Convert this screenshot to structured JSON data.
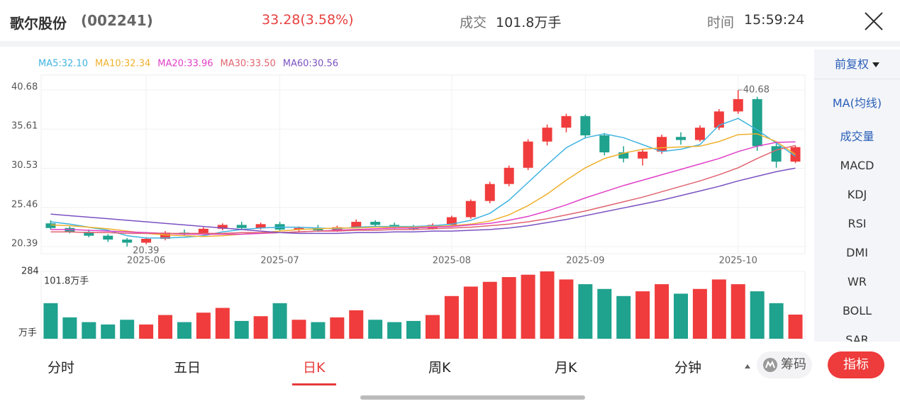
{
  "header": {
    "name": "歌尔股份",
    "code": "(002241)",
    "price": "33.28(3.58%)",
    "volume_label": "成交",
    "volume": "101.8万手",
    "time_label": "时间",
    "time": "15:59:24"
  },
  "chart_data": {
    "type": "candlestick",
    "categories": [
      null,
      null,
      null,
      null,
      null,
      "2025-06",
      null,
      null,
      null,
      null,
      null,
      null,
      "2025-07",
      null,
      null,
      null,
      null,
      null,
      null,
      null,
      null,
      "2025-08",
      null,
      null,
      null,
      null,
      null,
      null,
      "2025-09",
      null,
      null,
      null,
      null,
      null,
      null,
      null,
      "2025-10",
      null,
      null,
      null
    ],
    "open": [
      23.4,
      22.8,
      22.3,
      21.8,
      21.3,
      20.9,
      21.4,
      22.2,
      22.0,
      22.7,
      23.2,
      22.8,
      23.3,
      22.6,
      22.8,
      22.5,
      22.9,
      23.6,
      23.2,
      22.9,
      22.7,
      23.2,
      24.2,
      26.3,
      28.5,
      30.6,
      34.0,
      35.8,
      37.3,
      34.8,
      32.6,
      31.8,
      32.7,
      34.6,
      34.2,
      35.8,
      37.9,
      39.5,
      33.4,
      31.4
    ],
    "high": [
      23.8,
      23.0,
      22.6,
      22.0,
      21.5,
      21.6,
      22.4,
      22.6,
      22.9,
      23.4,
      23.6,
      23.5,
      23.6,
      23.0,
      23.2,
      23.1,
      23.9,
      23.8,
      23.5,
      23.2,
      23.4,
      24.4,
      26.5,
      28.8,
      30.9,
      34.3,
      36.2,
      37.6,
      37.5,
      35.1,
      33.4,
      33.0,
      34.9,
      35.2,
      36.1,
      38.2,
      40.68,
      39.8,
      33.9,
      33.5
    ],
    "low": [
      22.6,
      22.1,
      21.6,
      21.0,
      20.39,
      20.7,
      21.2,
      21.8,
      21.9,
      22.5,
      22.6,
      22.6,
      22.4,
      22.2,
      22.3,
      22.3,
      22.8,
      23.0,
      22.7,
      22.5,
      22.6,
      23.0,
      24.0,
      26.0,
      28.2,
      30.3,
      33.5,
      35.2,
      34.4,
      32.2,
      31.3,
      30.9,
      32.4,
      33.6,
      34.0,
      35.5,
      37.6,
      32.8,
      30.6,
      31.2
    ],
    "close": [
      22.8,
      22.3,
      21.8,
      21.3,
      20.9,
      21.4,
      22.2,
      22.0,
      22.7,
      23.2,
      22.8,
      23.3,
      22.6,
      22.8,
      22.5,
      22.9,
      23.6,
      23.2,
      22.9,
      22.7,
      23.2,
      24.2,
      26.3,
      28.5,
      30.6,
      34.0,
      35.8,
      37.3,
      34.8,
      32.6,
      31.8,
      32.7,
      34.6,
      34.2,
      35.8,
      37.9,
      39.5,
      33.4,
      31.4,
      33.28
    ],
    "up_color": "#f03c3c",
    "down_color": "#1fa28e",
    "ylim": [
      20.39,
      40.68
    ],
    "yticks": [
      20.39,
      25.46,
      30.53,
      35.61,
      40.68
    ],
    "grid": true,
    "series": [
      {
        "name": "MA5:32.10",
        "color": "#3fb3e0",
        "values": [
          23.6,
          23.3,
          22.9,
          22.5,
          21.8,
          21.5,
          21.5,
          21.6,
          21.8,
          22.3,
          22.6,
          22.8,
          22.9,
          22.9,
          22.8,
          22.7,
          22.9,
          23.0,
          23.0,
          23.0,
          23.1,
          23.3,
          23.8,
          24.7,
          26.4,
          28.7,
          31.0,
          33.2,
          34.5,
          35.0,
          34.5,
          33.6,
          32.7,
          33.0,
          33.6,
          36.1,
          37.0,
          35.5,
          33.8,
          32.1
        ]
      },
      {
        "name": "MA10:32.34",
        "color": "#efb02c",
        "values": [
          23.2,
          23.1,
          22.9,
          22.7,
          22.4,
          22.1,
          21.9,
          21.8,
          21.7,
          21.8,
          22.0,
          22.2,
          22.4,
          22.6,
          22.7,
          22.8,
          22.8,
          22.9,
          22.9,
          22.9,
          23.0,
          23.1,
          23.3,
          23.7,
          24.5,
          25.7,
          27.2,
          29.0,
          30.6,
          31.8,
          32.5,
          33.0,
          33.2,
          33.3,
          33.4,
          34.0,
          34.9,
          35.0,
          34.0,
          32.34
        ]
      },
      {
        "name": "MA20:33.96",
        "color": "#e040c8",
        "values": [
          22.6,
          22.6,
          22.5,
          22.4,
          22.3,
          22.2,
          22.1,
          22.0,
          22.0,
          22.0,
          22.0,
          22.1,
          22.2,
          22.3,
          22.4,
          22.5,
          22.6,
          22.7,
          22.8,
          22.8,
          22.9,
          23.0,
          23.2,
          23.4,
          23.8,
          24.3,
          25.0,
          25.8,
          26.7,
          27.5,
          28.3,
          29.0,
          29.7,
          30.4,
          31.1,
          31.8,
          32.7,
          33.4,
          33.9,
          33.96
        ]
      },
      {
        "name": "MA30:33.50",
        "color": "#e06470",
        "values": [
          22.3,
          22.3,
          22.2,
          22.2,
          22.1,
          22.1,
          22.1,
          22.1,
          22.1,
          22.1,
          22.2,
          22.2,
          22.2,
          22.3,
          22.4,
          22.4,
          22.5,
          22.5,
          22.6,
          22.6,
          22.7,
          22.8,
          22.9,
          23.1,
          23.3,
          23.6,
          24.0,
          24.5,
          25.0,
          25.6,
          26.2,
          26.8,
          27.5,
          28.2,
          28.9,
          29.7,
          30.6,
          31.8,
          32.9,
          33.5
        ]
      },
      {
        "name": "MA60:30.56",
        "color": "#7a52c2",
        "values": [
          24.6,
          24.4,
          24.2,
          24.0,
          23.8,
          23.6,
          23.4,
          23.2,
          23.0,
          22.8,
          22.6,
          22.4,
          22.2,
          22.1,
          22.1,
          22.1,
          22.2,
          22.2,
          22.3,
          22.3,
          22.4,
          22.4,
          22.5,
          22.6,
          22.8,
          23.1,
          23.5,
          23.9,
          24.4,
          24.9,
          25.4,
          25.9,
          26.4,
          27.0,
          27.6,
          28.2,
          28.9,
          29.5,
          30.1,
          30.56
        ]
      }
    ],
    "volume": {
      "values": [
        150,
        90,
        70,
        60,
        80,
        60,
        100,
        70,
        110,
        130,
        75,
        95,
        150,
        80,
        70,
        90,
        120,
        80,
        70,
        75,
        100,
        180,
        220,
        240,
        260,
        270,
        284,
        250,
        230,
        210,
        180,
        200,
        230,
        190,
        210,
        250,
        230,
        200,
        150,
        101.8
      ],
      "value_labels": [
        null,
        null,
        null,
        null,
        null,
        null,
        null,
        null,
        null,
        null,
        null,
        null,
        null,
        null,
        null,
        null,
        null,
        null,
        null,
        null,
        null,
        null,
        null,
        null,
        null,
        null,
        null,
        null,
        null,
        null,
        null,
        null,
        null,
        null,
        null,
        null,
        null,
        null,
        null,
        "101.8万手"
      ],
      "ylim": [
        0,
        284
      ],
      "yticks": [
        284
      ],
      "unit": "万手"
    }
  },
  "side_menu": {
    "adjust": "前复权",
    "items": [
      "MA(均线)",
      "成交量",
      "MACD",
      "KDJ",
      "RSI",
      "DMI",
      "WR",
      "BOLL",
      "SAR"
    ]
  },
  "tabs": [
    "分时",
    "五日",
    "日K",
    "周K",
    "月K",
    "分钟"
  ],
  "chip_button": "筹码",
  "indicator_button": "指标"
}
